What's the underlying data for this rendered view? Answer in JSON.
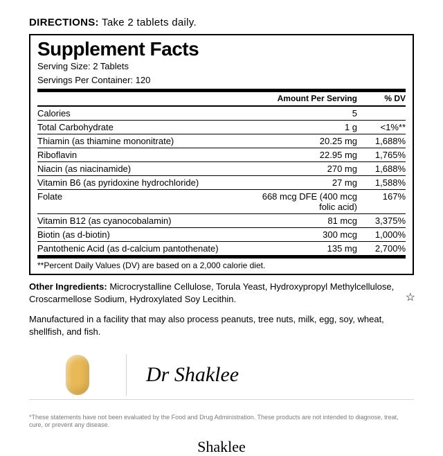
{
  "directions_label": "DIRECTIONS:",
  "directions_text": "Take 2 tablets daily.",
  "facts": {
    "title": "Supplement Facts",
    "serving_size": "Serving Size: 2 Tablets",
    "servings_per": "Servings Per Container: 120",
    "header_amount": "Amount Per Serving",
    "header_dv": "% DV",
    "rows": [
      {
        "name": "Calories",
        "amt": "5",
        "dv": ""
      },
      {
        "name": "Total Carbohydrate",
        "amt": "1 g",
        "dv": "<1%**"
      },
      {
        "name": "Thiamin (as thiamine mononitrate)",
        "amt": "20.25 mg",
        "dv": "1,688%"
      },
      {
        "name": "Riboflavin",
        "amt": "22.95 mg",
        "dv": "1,765%"
      },
      {
        "name": "Niacin (as niacinamide)",
        "amt": "270 mg",
        "dv": "1,688%"
      },
      {
        "name": "Vitamin B6 (as pyridoxine hydrochloride)",
        "amt": "27 mg",
        "dv": "1,588%"
      },
      {
        "name": "Folate",
        "amt": "668 mcg DFE (400 mcg folic acid)",
        "dv": "167%"
      },
      {
        "name": "Vitamin B12 (as cyanocobalamin)",
        "amt": "81 mcg",
        "dv": "3,375%"
      },
      {
        "name": "Biotin (as d-biotin)",
        "amt": "300 mcg",
        "dv": "1,000%"
      },
      {
        "name": "Pantothenic Acid (as d-calcium pantothenate)",
        "amt": "135 mg",
        "dv": "2,700%"
      }
    ],
    "footnote": "**Percent Daily Values (DV) are based on a 2,000 calorie diet."
  },
  "other_ingredients_label": "Other Ingredients:",
  "other_ingredients_text": "Microcrystalline Cellulose, Torula Yeast, Hydroxypropyl Methylcellulose, Croscarmellose Sodium, Hydroxylated Soy Lecithin.",
  "manufactured_text": "Manufactured in a facility that may also process peanuts, tree nuts, milk, egg, soy, wheat, shellfish, and fish.",
  "signature": "Dr Shaklee",
  "tablet_color": "#e8b956",
  "disclaimer": "*These statements have not been evaluated by the Food and Drug Administration. These products are not intended to diagnose, treat, cure, or prevent any disease.",
  "brand": "Shaklee"
}
